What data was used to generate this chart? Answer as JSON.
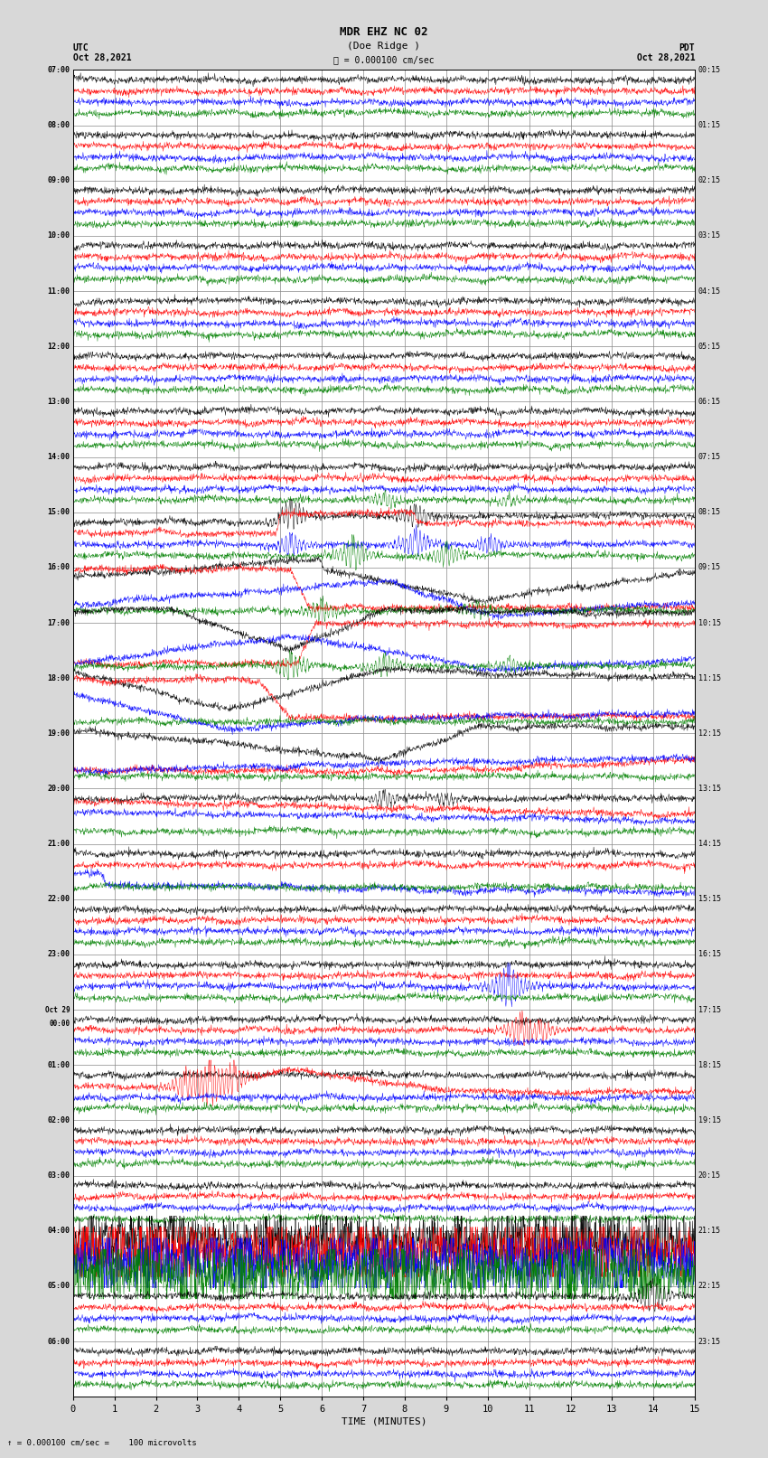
{
  "title_line1": "MDR EHZ NC 02",
  "title_line2": "(Doe Ridge )",
  "scale_label": "= 0.000100 cm/sec",
  "bottom_label": "= 0.000100 cm/sec =    100 microvolts",
  "xlabel": "TIME (MINUTES)",
  "left_header": "UTC\nOct 28,2021",
  "right_header": "PDT\nOct 28,2021",
  "utc_times": [
    "07:00",
    "08:00",
    "09:00",
    "10:00",
    "11:00",
    "12:00",
    "13:00",
    "14:00",
    "15:00",
    "16:00",
    "17:00",
    "18:00",
    "19:00",
    "20:00",
    "21:00",
    "22:00",
    "23:00",
    "Oct 29\n00:00",
    "01:00",
    "02:00",
    "03:00",
    "04:00",
    "05:00",
    "06:00"
  ],
  "pdt_times": [
    "00:15",
    "01:15",
    "02:15",
    "03:15",
    "04:15",
    "05:15",
    "06:15",
    "07:15",
    "08:15",
    "09:15",
    "10:15",
    "11:15",
    "12:15",
    "13:15",
    "14:15",
    "15:15",
    "16:15",
    "17:15",
    "18:15",
    "19:15",
    "20:15",
    "21:15",
    "22:15",
    "23:15"
  ],
  "n_rows": 24,
  "colors": [
    "black",
    "red",
    "blue",
    "green"
  ],
  "bg_color": "#d8d8d8",
  "grid_color": "#888888",
  "plot_bg": "white",
  "fig_width": 8.5,
  "fig_height": 16.13
}
